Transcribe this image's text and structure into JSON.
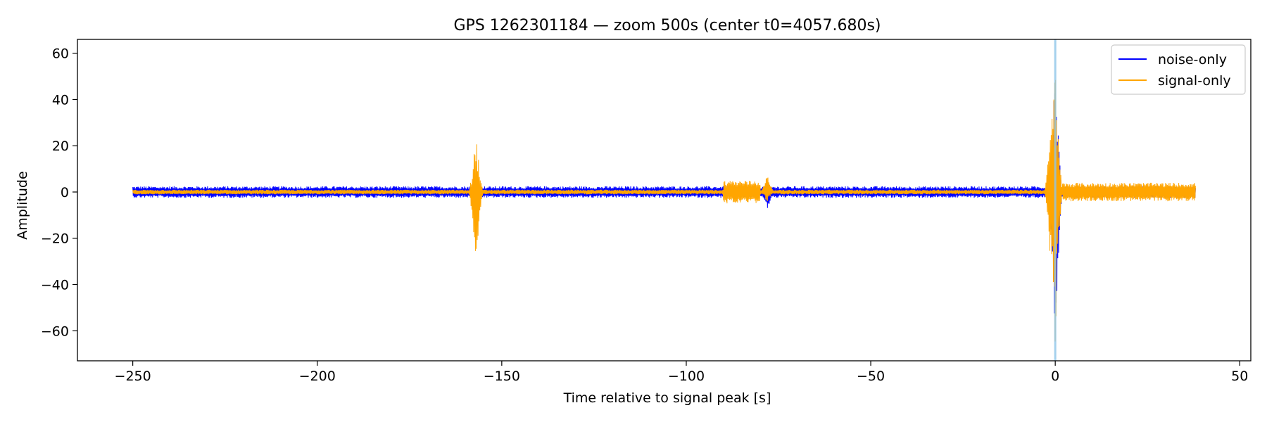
{
  "chart_data": {
    "type": "line",
    "title": "GPS 1262301184 — zoom 500s (center t0=4057.680s)",
    "xlabel": "Time relative to signal peak [s]",
    "ylabel": "Amplitude",
    "xlim": [
      -265,
      53
    ],
    "ylim": [
      -73,
      66
    ],
    "x_ticks": [
      -250,
      -200,
      -150,
      -100,
      -50,
      0,
      50
    ],
    "y_ticks": [
      -60,
      -40,
      -20,
      0,
      20,
      40,
      60
    ],
    "x_tick_labels": [
      "−250",
      "−200",
      "−150",
      "−100",
      "−50",
      "0",
      "50"
    ],
    "y_tick_labels": [
      "−60",
      "−40",
      "−20",
      "0",
      "20",
      "40",
      "60"
    ],
    "grid": false,
    "legend_position": "top-right",
    "marker_line": {
      "x": 0,
      "color": "#8ec5e8"
    },
    "series": [
      {
        "name": "noise-only",
        "color": "#0000ff",
        "x_range": [
          -250,
          38
        ],
        "baseline_amplitude": 2.5,
        "features": [
          {
            "x": -78,
            "min": -8,
            "max": 5
          },
          {
            "x": 0,
            "min": -67,
            "max": 60
          }
        ]
      },
      {
        "name": "signal-only",
        "color": "#ffa500",
        "x_range": [
          -250,
          38
        ],
        "baseline_amplitude": 1,
        "features": [
          {
            "x": -157,
            "min": -36,
            "max": 27
          },
          {
            "x": -85,
            "min": -5,
            "max": 5,
            "width": 10
          },
          {
            "x": -78,
            "min": -5,
            "max": 8
          },
          {
            "x": -1,
            "min": -38,
            "max": 37
          },
          {
            "x": 0,
            "min": -67,
            "max": 60
          },
          {
            "x": 20,
            "min": -4,
            "max": 4,
            "width": 36
          }
        ]
      }
    ]
  }
}
